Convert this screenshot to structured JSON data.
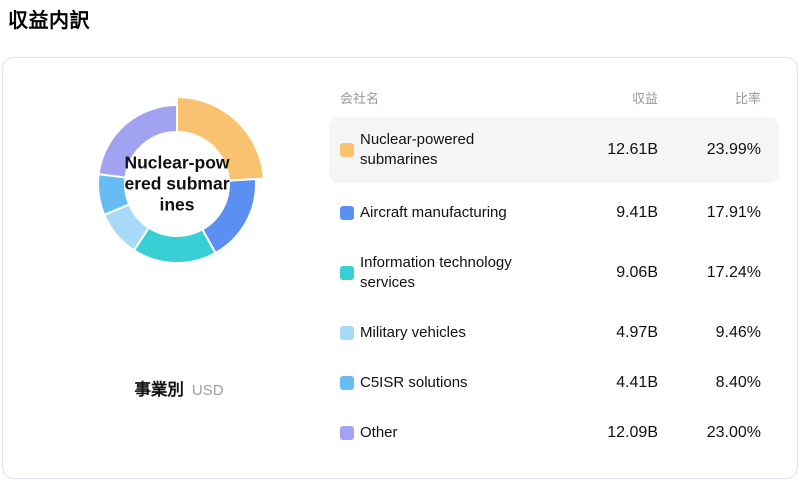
{
  "page_title": "収益内訳",
  "table_headers": {
    "name": "会社名",
    "revenue": "収益",
    "ratio": "比率"
  },
  "chart_data": {
    "type": "pie",
    "subtype": "donut",
    "title": "事業別",
    "unit": "USD",
    "center_label": "Nuclear-powered submarines",
    "selected_index": 0,
    "legend_position": "right-table",
    "series": [
      {
        "name": "Nuclear-powered submarines",
        "revenue": "12.61B",
        "ratio": "23.99%",
        "value": 23.99,
        "color": "#F9C270",
        "highlighted": true
      },
      {
        "name": "Aircraft manufacturing",
        "revenue": "9.41B",
        "ratio": "17.91%",
        "value": 17.91,
        "color": "#5B8FF2",
        "highlighted": false
      },
      {
        "name": "Information technology services",
        "revenue": "9.06B",
        "ratio": "17.24%",
        "value": 17.24,
        "color": "#38CFD4",
        "highlighted": false
      },
      {
        "name": "Military vehicles",
        "revenue": "4.97B",
        "ratio": "9.46%",
        "value": 9.46,
        "color": "#A6DAF8",
        "highlighted": false
      },
      {
        "name": "C5ISR solutions",
        "revenue": "4.41B",
        "ratio": "8.40%",
        "value": 8.4,
        "color": "#67BCF4",
        "highlighted": false
      },
      {
        "name": "Other",
        "revenue": "12.09B",
        "ratio": "23.00%",
        "value": 23.0,
        "color": "#A2A2F2",
        "highlighted": false
      }
    ]
  }
}
